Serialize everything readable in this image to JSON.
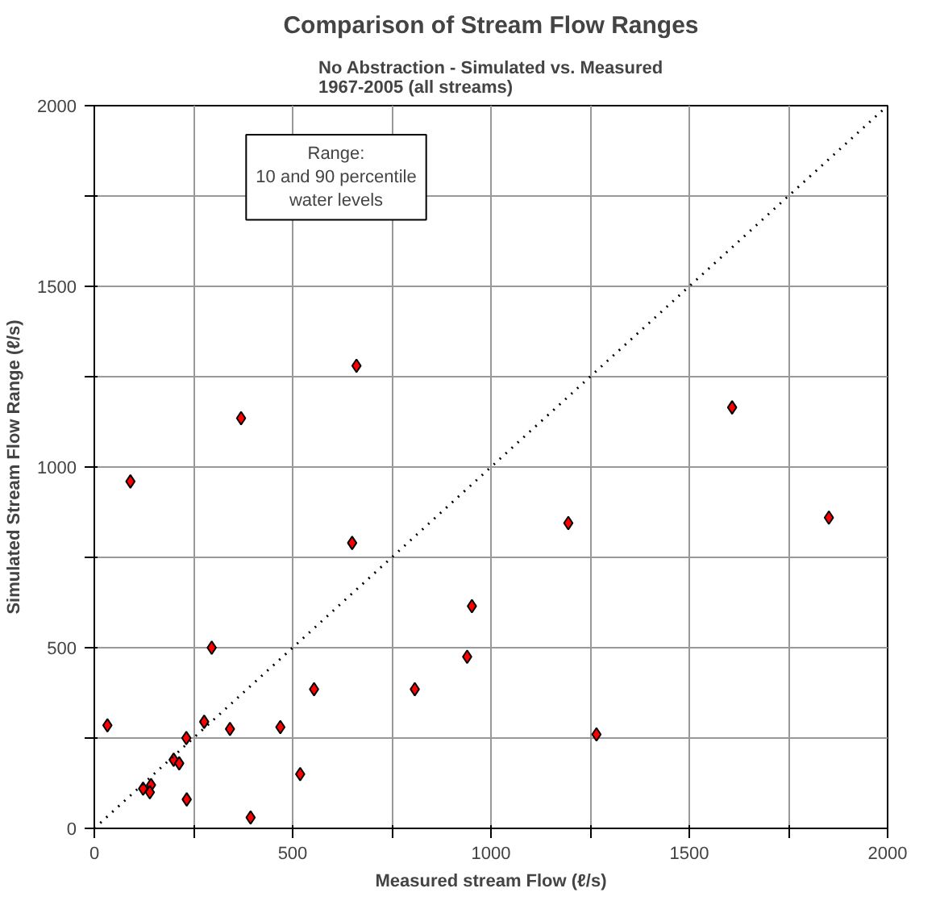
{
  "chart_data": {
    "type": "scatter",
    "title": "Comparison of Stream Flow Ranges",
    "subtitle": "No Abstraction - Simulated vs. Measured\n1967-2005 (all streams)",
    "xlabel": "Measured stream Flow (ℓ/s)",
    "ylabel": "Simulated Stream Flow Range (ℓ/s)",
    "series": [
      {
        "color": "#ff0000",
        "marker": "diamond",
        "x": [
          33,
          296,
          277,
          342,
          469,
          554,
          808,
          952,
          940,
          232,
          200,
          214,
          123,
          143,
          140,
          233,
          394,
          519,
          1266,
          91,
          370,
          661,
          650,
          1608,
          1195,
          1852
        ],
        "values": [
          285,
          500,
          295,
          275,
          280,
          385,
          385,
          615,
          475,
          250,
          190,
          180,
          110,
          120,
          100,
          80,
          30,
          150,
          260,
          960,
          1135,
          1280,
          790,
          1165,
          845,
          860
        ]
      },
      {
        "type": "line",
        "color": "#000000",
        "marker": "none",
        "line_style": "dotted",
        "x": [
          0,
          2000
        ],
        "values": [
          0,
          2000
        ]
      }
    ],
    "annotations": [
      "Range:\n10 and 90 percentile\nwater levels"
    ],
    "xlim": [
      0,
      2000
    ],
    "ylim": [
      0,
      2000
    ],
    "xticks": [
      0,
      {
        "value": 250,
        "label": null
      },
      500,
      {
        "value": 750,
        "label": null
      },
      1000,
      {
        "value": 1250,
        "label": null
      },
      1500,
      {
        "value": 1750,
        "label": null
      },
      2000
    ],
    "yticks": [
      0,
      {
        "value": 250,
        "label": null
      },
      500,
      {
        "value": 750,
        "label": null
      },
      1000,
      {
        "value": 1250,
        "label": null
      },
      1500,
      {
        "value": 1750,
        "label": null
      },
      2000
    ],
    "grid": true
  }
}
